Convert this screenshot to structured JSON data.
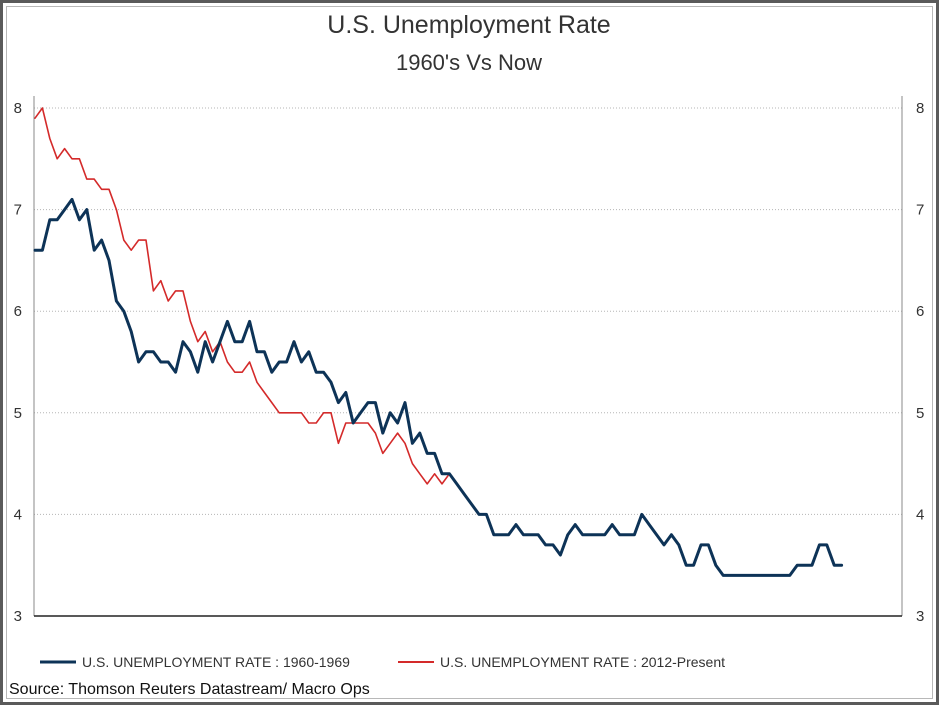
{
  "chart_data": {
    "type": "line",
    "title": "U.S. Unemployment Rate",
    "subtitle": "1960's Vs Now",
    "ylim": [
      3,
      8
    ],
    "y_ticks": [
      "3",
      "4",
      "5",
      "6",
      "7",
      "8"
    ],
    "dual_y_axis": true,
    "grid": "horizontal dotted",
    "legend_position": "bottom-left",
    "source": "Source: Thomson Reuters Datastream/ Macro Ops",
    "series": [
      {
        "name": "U.S. UNEMPLOYMENT RATE : 1960-1969",
        "color": "#0d3357",
        "values": [
          6.6,
          6.6,
          6.9,
          6.9,
          7.0,
          7.1,
          6.9,
          7.0,
          6.6,
          6.7,
          6.5,
          6.1,
          6.0,
          5.8,
          5.5,
          5.6,
          5.6,
          5.5,
          5.5,
          5.4,
          5.7,
          5.6,
          5.4,
          5.7,
          5.5,
          5.7,
          5.9,
          5.7,
          5.7,
          5.9,
          5.6,
          5.6,
          5.4,
          5.5,
          5.5,
          5.7,
          5.5,
          5.6,
          5.4,
          5.4,
          5.3,
          5.1,
          5.2,
          4.9,
          5.0,
          5.1,
          5.1,
          4.8,
          5.0,
          4.9,
          5.1,
          4.7,
          4.8,
          4.6,
          4.6,
          4.4,
          4.4,
          4.3,
          4.2,
          4.1,
          4.0,
          4.0,
          3.8,
          3.8,
          3.8,
          3.9,
          3.8,
          3.8,
          3.8,
          3.7,
          3.7,
          3.6,
          3.8,
          3.9,
          3.8,
          3.8,
          3.8,
          3.8,
          3.9,
          3.8,
          3.8,
          3.8,
          4.0,
          3.9,
          3.8,
          3.7,
          3.8,
          3.7,
          3.5,
          3.5,
          3.7,
          3.7,
          3.5,
          3.4,
          3.4,
          3.4,
          3.4,
          3.4,
          3.4,
          3.4,
          3.4,
          3.4,
          3.4,
          3.5,
          3.5,
          3.5,
          3.7,
          3.7,
          3.5,
          3.5
        ]
      },
      {
        "name": "U.S. UNEMPLOYMENT RATE : 2012-Present",
        "color": "#d42a2a",
        "values": [
          7.9,
          8.0,
          7.7,
          7.5,
          7.6,
          7.5,
          7.5,
          7.3,
          7.3,
          7.2,
          7.2,
          7.0,
          6.7,
          6.6,
          6.7,
          6.7,
          6.2,
          6.3,
          6.1,
          6.2,
          6.2,
          5.9,
          5.7,
          5.8,
          5.6,
          5.7,
          5.5,
          5.4,
          5.4,
          5.5,
          5.3,
          5.2,
          5.1,
          5.0,
          5.0,
          5.0,
          5.0,
          4.9,
          4.9,
          5.0,
          5.0,
          4.7,
          4.9,
          4.9,
          4.9,
          4.9,
          4.8,
          4.6,
          4.7,
          4.8,
          4.7,
          4.5,
          4.4,
          4.3,
          4.4,
          4.3,
          4.4
        ]
      }
    ]
  }
}
